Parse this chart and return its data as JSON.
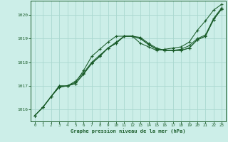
{
  "background_color": "#cceee8",
  "grid_color": "#aad8d0",
  "line_color": "#1a5c2a",
  "xlabel": "Graphe pression niveau de la mer (hPa)",
  "xlim": [
    -0.5,
    23.5
  ],
  "ylim": [
    1015.5,
    1020.6
  ],
  "yticks": [
    1016,
    1017,
    1018,
    1019,
    1020
  ],
  "xticks": [
    0,
    1,
    2,
    3,
    4,
    5,
    6,
    7,
    8,
    9,
    10,
    11,
    12,
    13,
    14,
    15,
    16,
    17,
    18,
    19,
    20,
    21,
    22,
    23
  ],
  "series": [
    [
      1015.75,
      1016.1,
      1016.55,
      1016.95,
      1017.0,
      1017.15,
      1017.65,
      1018.25,
      1018.55,
      1018.85,
      1019.1,
      1019.1,
      1019.1,
      1018.8,
      1018.65,
      1018.5,
      1018.55,
      1018.6,
      1018.65,
      1018.85,
      1019.35,
      1019.75,
      1020.2,
      1020.45
    ],
    [
      1015.75,
      1016.1,
      1016.55,
      1016.95,
      1017.0,
      1017.2,
      1017.55,
      1018.0,
      1018.3,
      1018.6,
      1018.85,
      1019.1,
      1019.1,
      1019.05,
      1018.8,
      1018.6,
      1018.5,
      1018.5,
      1018.55,
      1018.7,
      1019.0,
      1019.15,
      1019.85,
      1020.3
    ],
    [
      1015.75,
      1016.1,
      1016.55,
      1017.0,
      1017.0,
      1017.1,
      1017.5,
      1017.95,
      1018.25,
      1018.6,
      1018.8,
      1019.1,
      1019.1,
      1019.0,
      1018.75,
      1018.55,
      1018.5,
      1018.5,
      1018.5,
      1018.6,
      1018.95,
      1019.1,
      1019.8,
      1020.25
    ],
    [
      1015.75,
      1016.1,
      1016.55,
      1017.0,
      1017.0,
      1017.1,
      1017.5,
      1017.95,
      1018.25,
      1018.6,
      1018.8,
      1019.1,
      1019.1,
      1019.0,
      1018.75,
      1018.55,
      1018.5,
      1018.5,
      1018.5,
      1018.6,
      1018.95,
      1019.1,
      1019.8,
      1020.25
    ]
  ]
}
